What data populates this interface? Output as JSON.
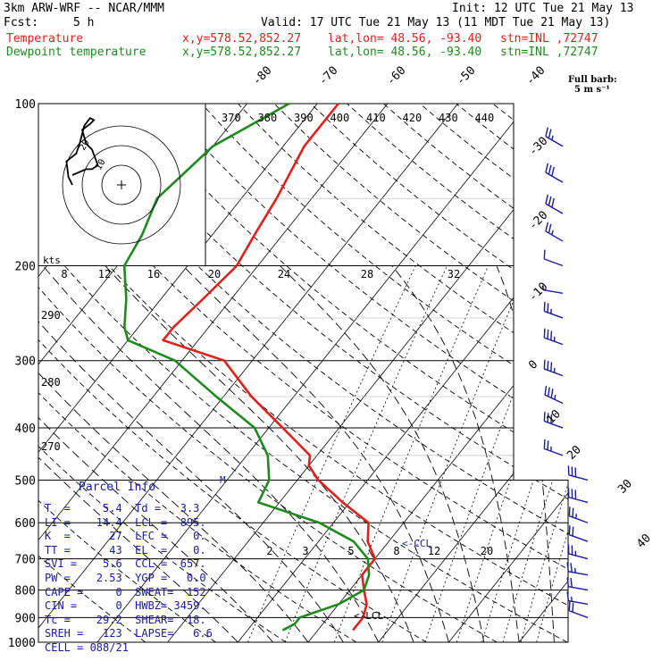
{
  "header": {
    "model": "3km ARW-WRF -- NCAR/MMM",
    "init": "Init: 12 UTC Tue 21 May 13",
    "fcst_label": "Fcst:",
    "fcst_value": "5 h",
    "valid": "Valid: 17 UTC Tue 21 May 13 (11 MDT Tue 21 May 13)",
    "temp_label": "Temperature",
    "dew_label": "Dewpoint temperature",
    "xy": "x,y=578.52,852.27",
    "latlon": "lat,lon= 48.56, -93.40",
    "stn": "stn=INL ,72747"
  },
  "colors": {
    "temperature": "#e0201c",
    "dewpoint": "#1e8a1e",
    "parcel": "#1a1aa0",
    "barb": "#1a1aa0"
  },
  "barb_label": {
    "line1": "Full barb:",
    "line2": "5 m s⁻¹"
  },
  "hodograph": {
    "unit": "kts",
    "ring_labels": [
      "10",
      "20"
    ],
    "path_kts": [
      [
        -25,
        5
      ],
      [
        -18,
        8
      ],
      [
        -15,
        8
      ],
      [
        -12,
        10
      ],
      [
        -15,
        18
      ],
      [
        -18,
        21
      ],
      [
        -20,
        28
      ],
      [
        -16,
        31
      ],
      [
        -14,
        33
      ],
      [
        -16,
        34
      ],
      [
        -19,
        30
      ],
      [
        -21,
        22
      ],
      [
        -23,
        16
      ],
      [
        -28,
        12
      ],
      [
        -27,
        4
      ],
      [
        -25,
        0
      ]
    ]
  },
  "chart_data": {
    "type": "line",
    "chart": "skew-T log-p",
    "ylabel": "",
    "pressure_ticks": [
      100,
      200,
      300,
      400,
      500,
      600,
      700,
      800,
      900,
      1000
    ],
    "isotherm_labels": [
      -80,
      -70,
      -60,
      -50,
      -40,
      -30,
      -20,
      -10,
      0,
      10,
      20,
      30,
      40
    ],
    "theta_labels": [
      370,
      380,
      390,
      400,
      410,
      420,
      430,
      440
    ],
    "theta_left_labels": [
      290,
      280,
      270
    ],
    "mixing_ratio_upper": [
      8,
      12,
      16,
      20,
      24,
      28,
      32
    ],
    "mixing_ratio_lower": [
      2,
      3,
      5,
      8,
      12,
      20
    ],
    "annotations": [
      "<-CCL",
      "<-LCL",
      "M"
    ],
    "series": [
      {
        "name": "Temperature",
        "points": [
          [
            100,
            -57
          ],
          [
            120,
            -57
          ],
          [
            150,
            -55
          ],
          [
            175,
            -54
          ],
          [
            200,
            -53
          ],
          [
            230,
            -54
          ],
          [
            260,
            -55
          ],
          [
            275,
            -55
          ],
          [
            300,
            -44
          ],
          [
            350,
            -36
          ],
          [
            400,
            -28
          ],
          [
            450,
            -21
          ],
          [
            470,
            -20
          ],
          [
            500,
            -17
          ],
          [
            550,
            -11
          ],
          [
            600,
            -5
          ],
          [
            650,
            -3
          ],
          [
            700,
            0
          ],
          [
            750,
            0
          ],
          [
            800,
            2
          ],
          [
            850,
            4
          ],
          [
            900,
            5
          ],
          [
            925,
            5
          ],
          [
            950,
            5
          ]
        ]
      },
      {
        "name": "Dewpoint temperature",
        "points": [
          [
            100,
            -64
          ],
          [
            120,
            -70
          ],
          [
            150,
            -72
          ],
          [
            175,
            -70
          ],
          [
            200,
            -69
          ],
          [
            230,
            -65
          ],
          [
            260,
            -62
          ],
          [
            275,
            -60
          ],
          [
            300,
            -51
          ],
          [
            350,
            -41
          ],
          [
            400,
            -32
          ],
          [
            450,
            -27
          ],
          [
            500,
            -24
          ],
          [
            550,
            -23
          ],
          [
            600,
            -12
          ],
          [
            650,
            -5
          ],
          [
            700,
            -1
          ],
          [
            750,
            1
          ],
          [
            800,
            2
          ],
          [
            850,
            0
          ],
          [
            900,
            -4
          ],
          [
            925,
            -4
          ],
          [
            950,
            -5
          ]
        ]
      }
    ],
    "wind_barbs": [
      {
        "p": 120,
        "knots": 25,
        "dir": 300
      },
      {
        "p": 140,
        "knots": 30,
        "dir": 300
      },
      {
        "p": 160,
        "knots": 30,
        "dir": 300
      },
      {
        "p": 180,
        "knots": 25,
        "dir": 300
      },
      {
        "p": 200,
        "knots": 10,
        "dir": 290
      },
      {
        "p": 225,
        "knots": 5,
        "dir": 280
      },
      {
        "p": 250,
        "knots": 25,
        "dir": 290
      },
      {
        "p": 280,
        "knots": 35,
        "dir": 290
      },
      {
        "p": 320,
        "knots": 35,
        "dir": 290
      },
      {
        "p": 360,
        "knots": 35,
        "dir": 295
      },
      {
        "p": 400,
        "knots": 30,
        "dir": 290
      },
      {
        "p": 450,
        "knots": 25,
        "dir": 290
      },
      {
        "p": 500,
        "knots": 30,
        "dir": 285
      },
      {
        "p": 550,
        "knots": 30,
        "dir": 285
      },
      {
        "p": 600,
        "knots": 25,
        "dir": 290
      },
      {
        "p": 650,
        "knots": 20,
        "dir": 290
      },
      {
        "p": 700,
        "knots": 25,
        "dir": 285
      },
      {
        "p": 750,
        "knots": 25,
        "dir": 280
      },
      {
        "p": 800,
        "knots": 20,
        "dir": 280
      },
      {
        "p": 850,
        "knots": 15,
        "dir": 280
      },
      {
        "p": 900,
        "knots": 20,
        "dir": 290
      }
    ]
  },
  "parcel_info": {
    "title": "Parcel Info",
    "rows": [
      [
        "T  =     5.4",
        "Td =   3.3"
      ],
      [
        "LI =    14.4",
        "LCL =  895."
      ],
      [
        "K  =      27",
        "LFC =    0."
      ],
      [
        "TT =      43",
        "EL  =    0."
      ],
      [
        "SVI =    5.6",
        "CCL =  657."
      ],
      [
        "PW =    2.53",
        "YGP =   0.0"
      ],
      [
        "CAPE =     0",
        "SWEAT=  152"
      ],
      [
        "CIN =      0",
        "HWBZ= 3459."
      ],
      [
        "Tc =    29.2",
        "SHEAR=  18."
      ],
      [
        "SREH =   123",
        "LAPSE=   6.6"
      ],
      [
        "CELL = 088/21",
        ""
      ]
    ]
  }
}
